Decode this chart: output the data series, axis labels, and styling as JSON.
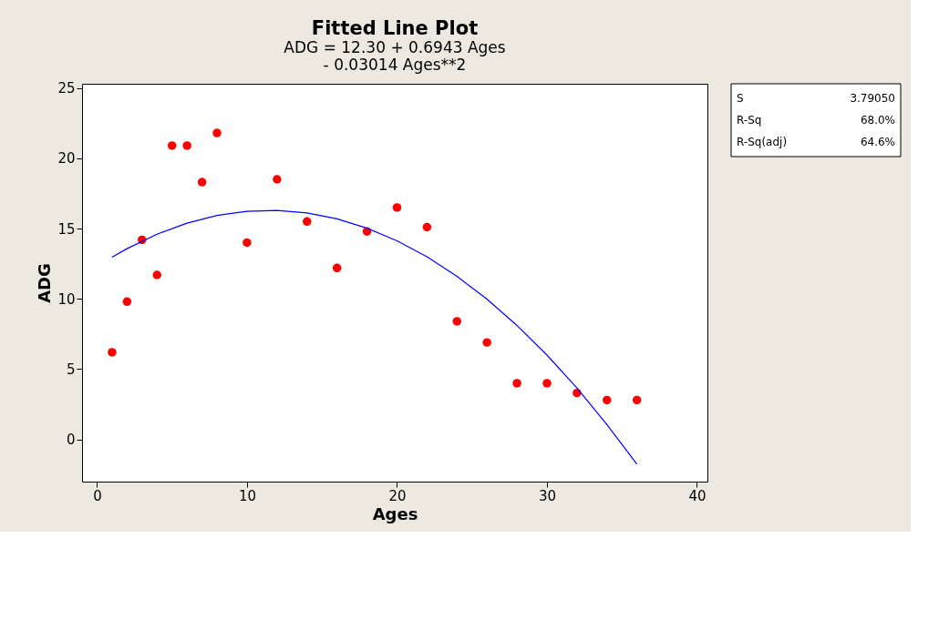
{
  "chart_data": {
    "type": "scatter",
    "title": "Fitted Line Plot",
    "subtitle": "ADG =  12.30 + 0.6943 Ages\n- 0.03014 Ages**2",
    "xlabel": "Ages",
    "ylabel": "ADG",
    "xlim": [
      -1,
      40.7
    ],
    "ylim": [
      -3,
      25.3
    ],
    "xticks": [
      0,
      10,
      20,
      30,
      40
    ],
    "yticks": [
      0,
      5,
      10,
      15,
      20,
      25
    ],
    "grid": false,
    "series": [
      {
        "color": "#ff0000",
        "marker": "circle",
        "x": [
          1,
          2,
          3,
          4,
          5,
          6,
          7,
          8,
          10,
          12,
          14,
          16,
          18,
          20,
          22,
          24,
          26,
          28,
          30,
          32,
          34,
          36
        ],
        "values": [
          6.2,
          9.8,
          14.2,
          11.7,
          20.9,
          20.9,
          18.3,
          21.8,
          14.0,
          18.5,
          15.5,
          12.2,
          14.8,
          16.5,
          15.1,
          8.4,
          6.9,
          4.0,
          4.0,
          3.3,
          2.8,
          2.8
        ]
      },
      {
        "type": "line",
        "color": "#0000ff",
        "line_style": "solid",
        "x": [
          1,
          2,
          4,
          6,
          8,
          10,
          12,
          14,
          16,
          18,
          20,
          22,
          24,
          26,
          28,
          30,
          32,
          34,
          36
        ],
        "values": [
          12.96,
          13.57,
          14.6,
          15.38,
          15.93,
          16.23,
          16.29,
          16.11,
          15.69,
          15.03,
          14.13,
          12.99,
          11.6,
          9.98,
          8.11,
          6.0,
          3.66,
          1.06,
          -1.76
        ]
      }
    ],
    "annotations": [
      "S",
      "3.79050",
      "R-Sq",
      "68.0%",
      "R-Sq(adj)",
      "64.6%"
    ]
  }
}
